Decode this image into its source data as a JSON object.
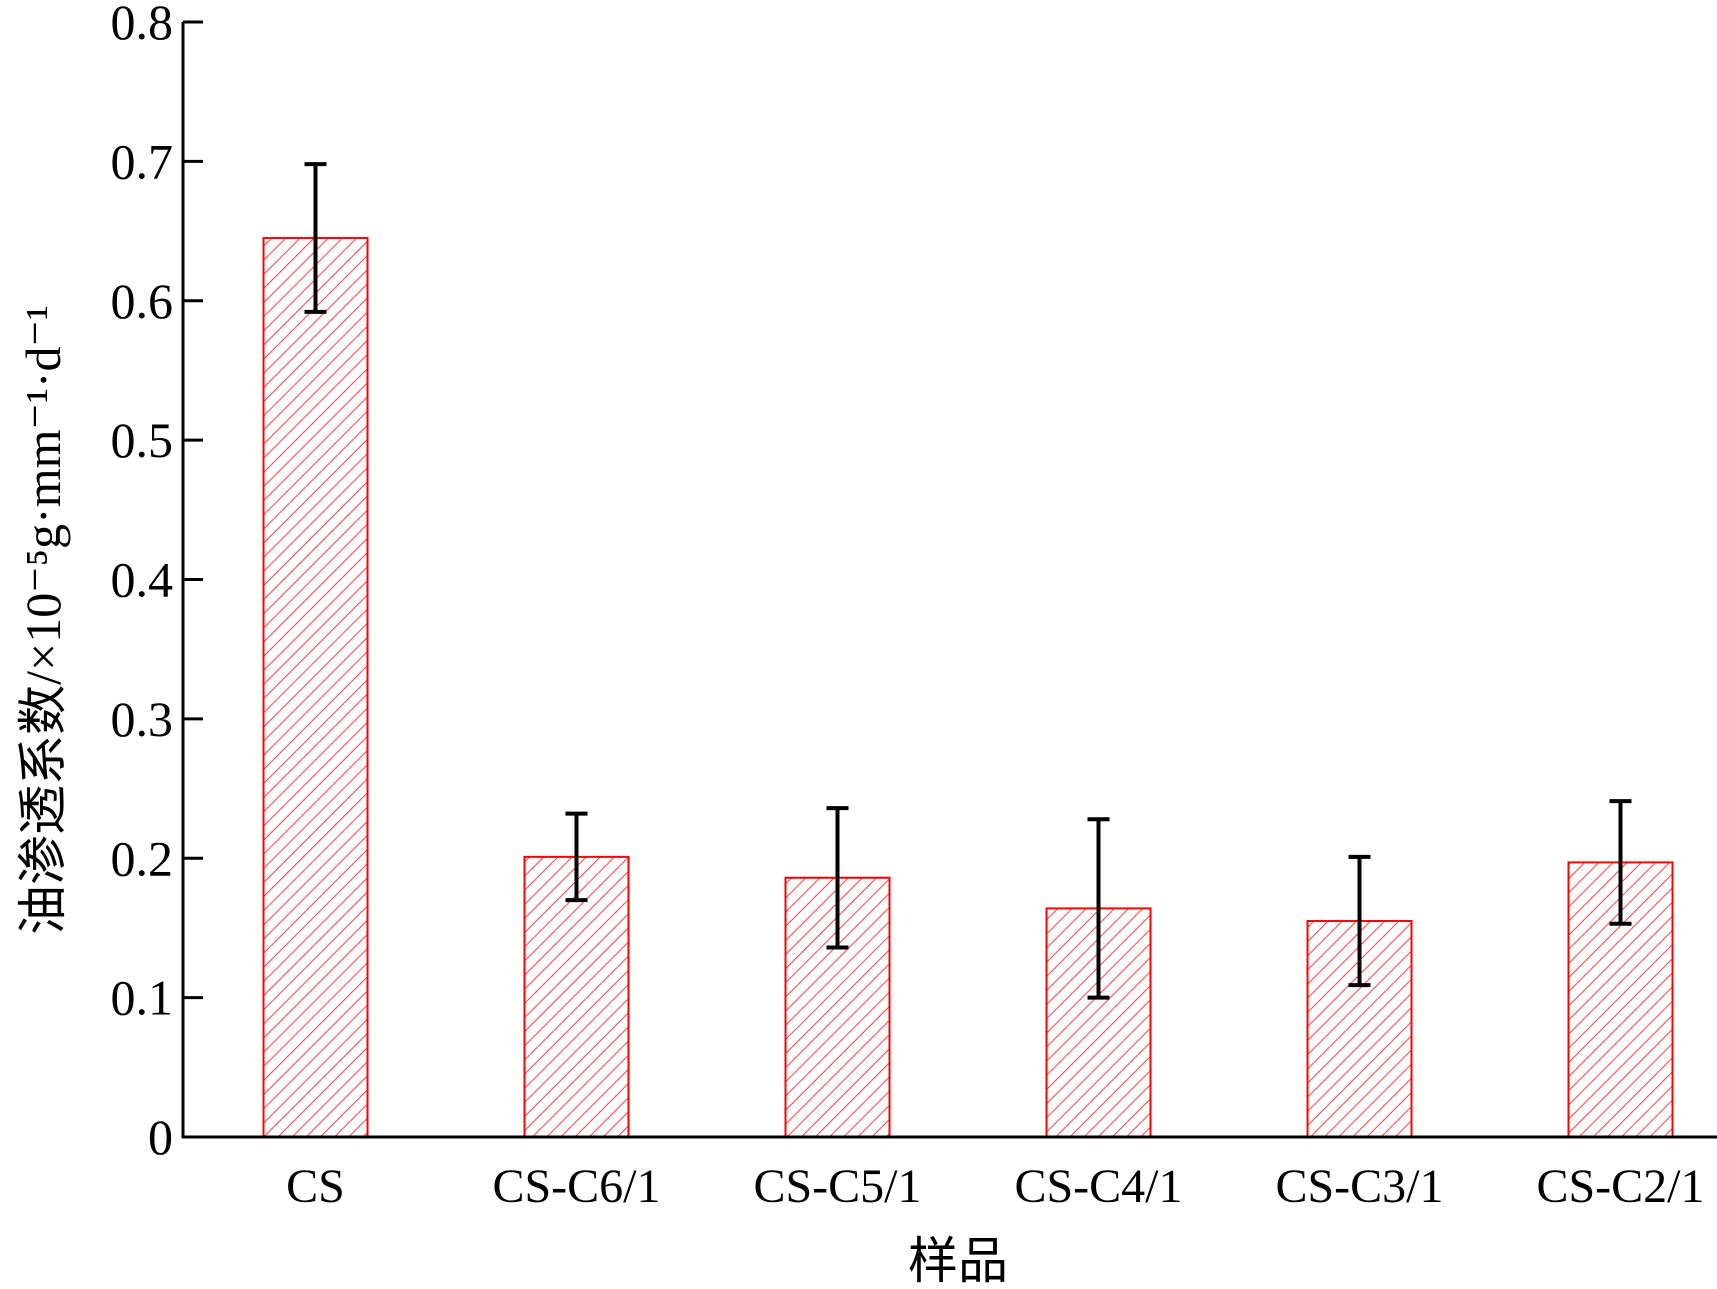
{
  "chart_data": {
    "type": "bar",
    "title": "",
    "xlabel": "样品",
    "ylabel": "油渗透系数/×10⁻⁵g·mm⁻¹·d⁻¹",
    "categories": [
      "CS",
      "CS-C6/1",
      "CS-C5/1",
      "CS-C4/1",
      "CS-C3/1",
      "CS-C2/1"
    ],
    "values": [
      0.645,
      0.201,
      0.186,
      0.164,
      0.155,
      0.197
    ],
    "error_upper": [
      0.698,
      0.232,
      0.236,
      0.228,
      0.201,
      0.241
    ],
    "error_lower": [
      0.592,
      0.17,
      0.136,
      0.1,
      0.109,
      0.153
    ],
    "ylim": [
      0,
      0.8
    ],
    "yticks": [
      "0",
      "0.1",
      "0.2",
      "0.3",
      "0.4",
      "0.5",
      "0.6",
      "0.7",
      "0.8"
    ],
    "grid": false,
    "legend": "none",
    "colors": {
      "bar": "#ff0000",
      "error_bar": "#000000",
      "axis": "#000000"
    },
    "bar_pattern": "diagonal-hatch"
  }
}
